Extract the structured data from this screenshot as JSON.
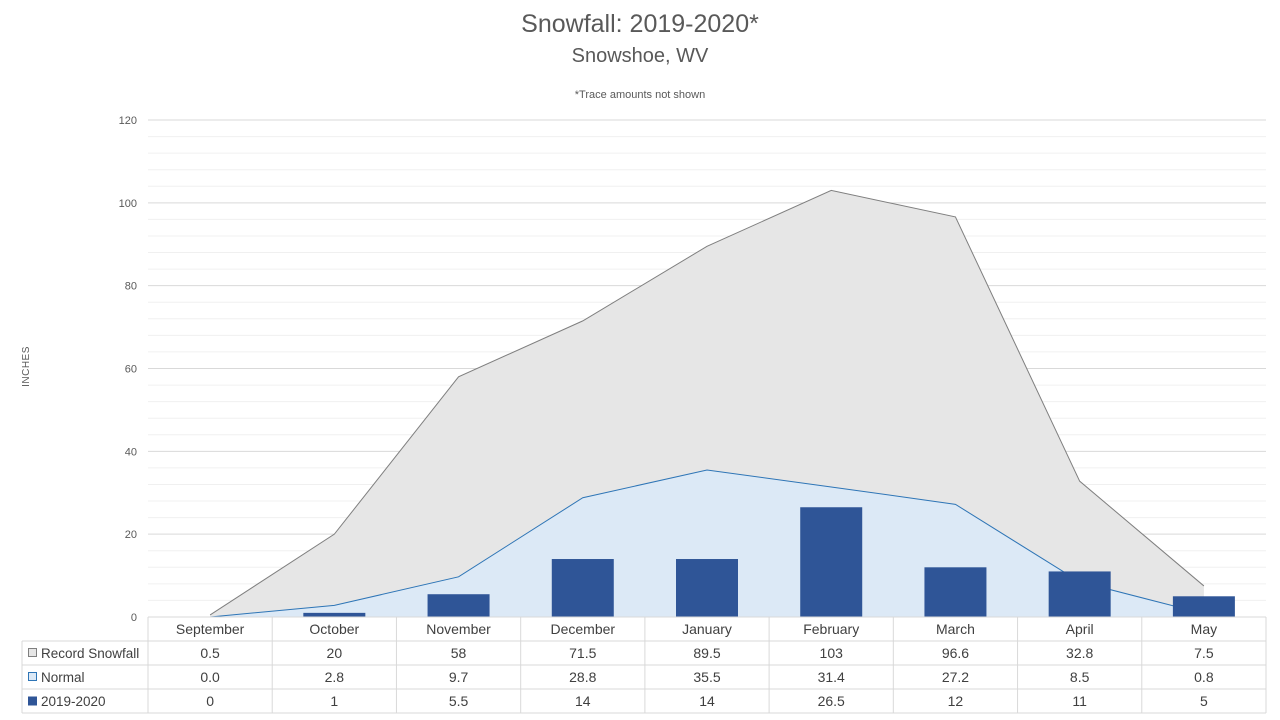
{
  "chart_data": {
    "type": "bar",
    "title": "Snowfall: 2019-2020*",
    "subtitle": "Snowshoe, WV",
    "note": "*Trace amounts not shown",
    "ylabel": "INCHES",
    "ylim": [
      0,
      120
    ],
    "yticks": [
      0,
      20,
      40,
      60,
      80,
      100,
      120
    ],
    "categories": [
      "September",
      "October",
      "November",
      "December",
      "January",
      "February",
      "March",
      "April",
      "May"
    ],
    "series": [
      {
        "name": "Record Snowfall",
        "kind": "area",
        "values": [
          0.5,
          20,
          58,
          71.5,
          89.5,
          103,
          96.6,
          32.8,
          7.5
        ],
        "labels": [
          "0.5",
          "20",
          "58",
          "71.5",
          "89.5",
          "103",
          "96.6",
          "32.8",
          "7.5"
        ],
        "fill": "#e6e6e6",
        "stroke": "#7f7f7f"
      },
      {
        "name": "Normal",
        "kind": "area",
        "values": [
          0.0,
          2.8,
          9.7,
          28.8,
          35.5,
          31.4,
          27.2,
          8.5,
          0.8
        ],
        "labels": [
          "0.0",
          "2.8",
          "9.7",
          "28.8",
          "35.5",
          "31.4",
          "27.2",
          "8.5",
          "0.8"
        ],
        "fill": "#dce9f6",
        "stroke": "#2e75b6"
      },
      {
        "name": "2019-2020",
        "kind": "bar",
        "values": [
          0,
          1,
          5.5,
          14,
          14,
          26.5,
          12,
          11,
          5
        ],
        "labels": [
          "0",
          "1",
          "5.5",
          "14",
          "14",
          "26.5",
          "12",
          "11",
          "5"
        ],
        "fill": "#2f5597"
      }
    ],
    "grid": true,
    "legend": "data-table"
  }
}
